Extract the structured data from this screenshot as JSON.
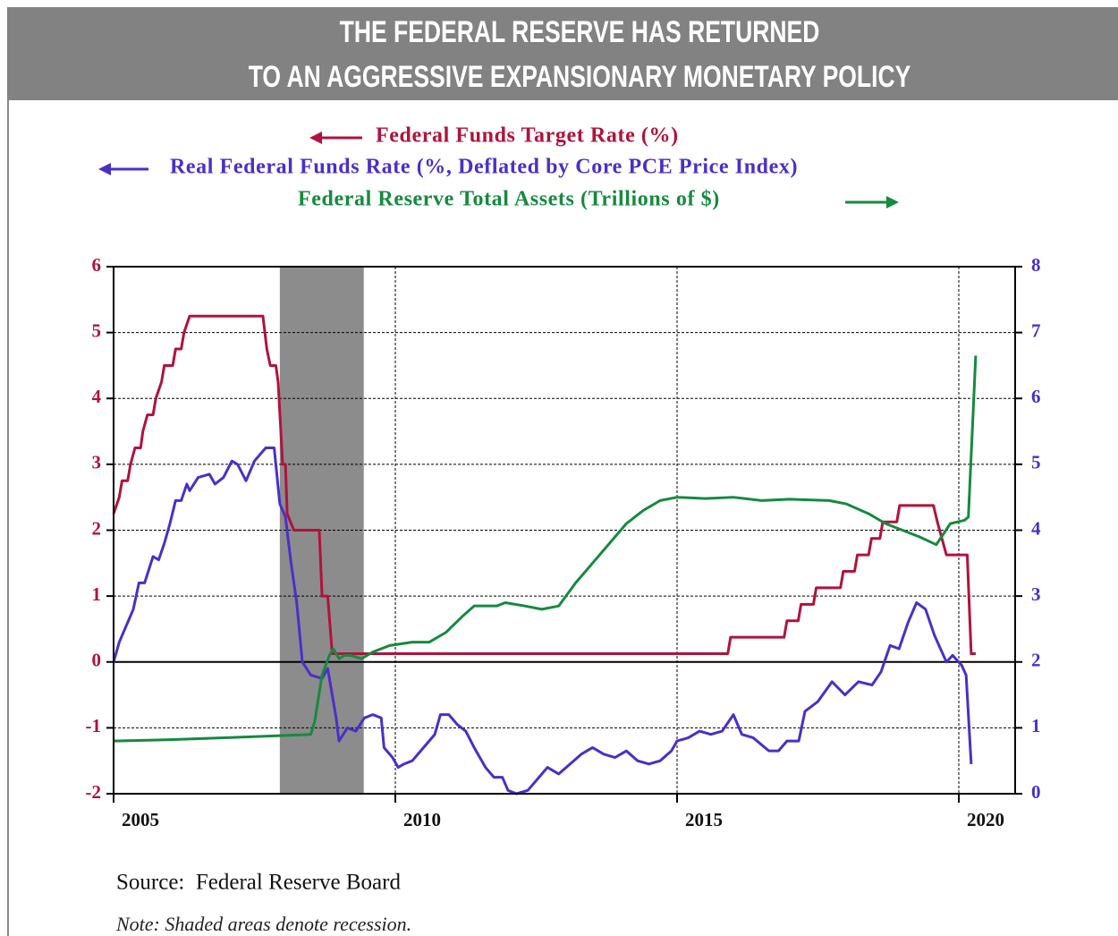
{
  "chart_data": {
    "type": "line",
    "title": [
      "THE FEDERAL RESERVE HAS RETURNED",
      "TO AN AGGRESSIVE EXPANSIONARY MONETARY POLICY"
    ],
    "source": "Source:  Federal Reserve Board",
    "note": "Note: Shaded areas denote recession.",
    "xlim": [
      2005,
      2021
    ],
    "xticks": [
      2005,
      2010,
      2015,
      2020
    ],
    "ylim": [
      -2,
      6
    ],
    "yticks": [
      -2,
      -1,
      0,
      1,
      2,
      3,
      4,
      5,
      6
    ],
    "y2lim": [
      0,
      8
    ],
    "y2ticks": [
      0,
      1,
      2,
      3,
      4,
      5,
      6,
      7,
      8
    ],
    "grid": true,
    "recessions": [
      [
        2007.95,
        2009.44
      ]
    ],
    "series": [
      {
        "name": "Federal Funds Target Rate (%)",
        "color": "#b0133c",
        "axis": "y",
        "x": [
          2005.0,
          2005.1,
          2005.15,
          2005.25,
          2005.3,
          2005.38,
          2005.48,
          2005.52,
          2005.6,
          2005.7,
          2005.75,
          2005.85,
          2005.9,
          2006.05,
          2006.1,
          2006.2,
          2006.25,
          2006.35,
          2007.65,
          2007.72,
          2007.78,
          2007.88,
          2007.92,
          2008.0,
          2008.05,
          2008.08,
          2008.2,
          2008.65,
          2008.7,
          2008.8,
          2008.88,
          2015.9,
          2015.95,
          2016.9,
          2016.95,
          2017.15,
          2017.2,
          2017.42,
          2017.47,
          2017.9,
          2017.95,
          2018.15,
          2018.2,
          2018.4,
          2018.45,
          2018.6,
          2018.65,
          2018.9,
          2018.95,
          2019.55,
          2019.62,
          2019.7,
          2019.78,
          2020.15,
          2020.22,
          2020.3
        ],
        "values": [
          2.25,
          2.5,
          2.75,
          2.75,
          3.0,
          3.25,
          3.25,
          3.5,
          3.75,
          3.75,
          4.0,
          4.25,
          4.5,
          4.5,
          4.75,
          4.75,
          5.0,
          5.25,
          5.25,
          4.75,
          4.5,
          4.5,
          4.25,
          3.0,
          3.0,
          2.25,
          2.0,
          2.0,
          1.0,
          1.0,
          0.125,
          0.125,
          0.375,
          0.375,
          0.625,
          0.625,
          0.875,
          0.875,
          1.125,
          1.125,
          1.375,
          1.375,
          1.625,
          1.625,
          1.875,
          1.875,
          2.125,
          2.125,
          2.375,
          2.375,
          2.125,
          1.875,
          1.625,
          1.625,
          0.125,
          0.125
        ]
      },
      {
        "name": "Real Federal Funds Rate (%, Deflated by Core PCE Price Index)",
        "color": "#4b2fc8",
        "axis": "y",
        "x": [
          2005.0,
          2005.1,
          2005.2,
          2005.35,
          2005.45,
          2005.55,
          2005.7,
          2005.8,
          2005.9,
          2006.0,
          2006.1,
          2006.2,
          2006.3,
          2006.35,
          2006.5,
          2006.7,
          2006.8,
          2006.95,
          2007.1,
          2007.2,
          2007.35,
          2007.5,
          2007.7,
          2007.85,
          2007.95,
          2008.05,
          2008.15,
          2008.25,
          2008.35,
          2008.5,
          2008.7,
          2008.8,
          2008.9,
          2008.95,
          2009.0,
          2009.15,
          2009.3,
          2009.45,
          2009.6,
          2009.75,
          2009.8,
          2009.95,
          2010.05,
          2010.15,
          2010.3,
          2010.5,
          2010.7,
          2010.8,
          2010.95,
          2011.1,
          2011.25,
          2011.4,
          2011.6,
          2011.75,
          2011.9,
          2012.0,
          2012.15,
          2012.35,
          2012.55,
          2012.7,
          2012.9,
          2013.1,
          2013.3,
          2013.5,
          2013.7,
          2013.9,
          2014.1,
          2014.3,
          2014.5,
          2014.7,
          2014.9,
          2015.0,
          2015.2,
          2015.4,
          2015.6,
          2015.8,
          2016.0,
          2016.15,
          2016.35,
          2016.63,
          2016.8,
          2016.95,
          2017.16,
          2017.27,
          2017.5,
          2017.75,
          2017.98,
          2018.22,
          2018.46,
          2018.62,
          2018.78,
          2018.94,
          2019.1,
          2019.25,
          2019.41,
          2019.57,
          2019.78,
          2019.89,
          2020.05,
          2020.13,
          2020.22
        ],
        "values": [
          0.0,
          0.3,
          0.5,
          0.8,
          1.2,
          1.2,
          1.6,
          1.55,
          1.8,
          2.1,
          2.45,
          2.45,
          2.7,
          2.6,
          2.8,
          2.85,
          2.7,
          2.8,
          3.05,
          3.0,
          2.75,
          3.05,
          3.25,
          3.25,
          2.4,
          2.2,
          1.5,
          0.9,
          0.0,
          -0.2,
          -0.25,
          -0.1,
          -0.6,
          -0.85,
          -1.2,
          -1.0,
          -1.05,
          -0.85,
          -0.8,
          -0.85,
          -1.3,
          -1.45,
          -1.6,
          -1.55,
          -1.5,
          -1.3,
          -1.1,
          -0.8,
          -0.8,
          -0.95,
          -1.05,
          -1.3,
          -1.6,
          -1.75,
          -1.75,
          -1.95,
          -2.0,
          -1.95,
          -1.75,
          -1.6,
          -1.7,
          -1.55,
          -1.4,
          -1.3,
          -1.4,
          -1.45,
          -1.35,
          -1.5,
          -1.55,
          -1.5,
          -1.35,
          -1.2,
          -1.15,
          -1.05,
          -1.1,
          -1.05,
          -0.8,
          -1.1,
          -1.15,
          -1.35,
          -1.35,
          -1.2,
          -1.2,
          -0.75,
          -0.6,
          -0.3,
          -0.5,
          -0.3,
          -0.35,
          -0.15,
          0.25,
          0.2,
          0.6,
          0.9,
          0.8,
          0.4,
          0.0,
          0.1,
          -0.05,
          -0.2,
          -1.55
        ]
      },
      {
        "name": "Federal Reserve Total Assets (Trillions of $)",
        "color": "#168a3e",
        "axis": "y2",
        "x": [
          2005.0,
          2006.0,
          2007.0,
          2007.9,
          2008.5,
          2008.57,
          2008.7,
          2008.83,
          2008.9,
          2009.0,
          2009.1,
          2009.2,
          2009.4,
          2009.6,
          2009.9,
          2010.3,
          2010.6,
          2010.9,
          2011.2,
          2011.4,
          2011.8,
          2011.95,
          2012.3,
          2012.6,
          2012.9,
          2013.2,
          2013.5,
          2013.8,
          2014.1,
          2014.4,
          2014.7,
          2015.0,
          2015.5,
          2016.0,
          2016.5,
          2017.0,
          2017.7,
          2018.0,
          2018.4,
          2018.7,
          2019.0,
          2019.3,
          2019.6,
          2019.85,
          2020.1,
          2020.17,
          2020.25,
          2020.3
        ],
        "values": [
          0.8,
          0.82,
          0.85,
          0.88,
          0.9,
          1.1,
          1.8,
          2.1,
          2.2,
          2.05,
          2.1,
          2.1,
          2.05,
          2.15,
          2.25,
          2.3,
          2.3,
          2.45,
          2.7,
          2.85,
          2.85,
          2.9,
          2.85,
          2.8,
          2.85,
          3.2,
          3.5,
          3.8,
          4.1,
          4.3,
          4.45,
          4.5,
          4.48,
          4.5,
          4.45,
          4.47,
          4.45,
          4.4,
          4.25,
          4.1,
          4.0,
          3.9,
          3.78,
          4.1,
          4.15,
          4.2,
          5.7,
          6.65
        ]
      }
    ]
  }
}
